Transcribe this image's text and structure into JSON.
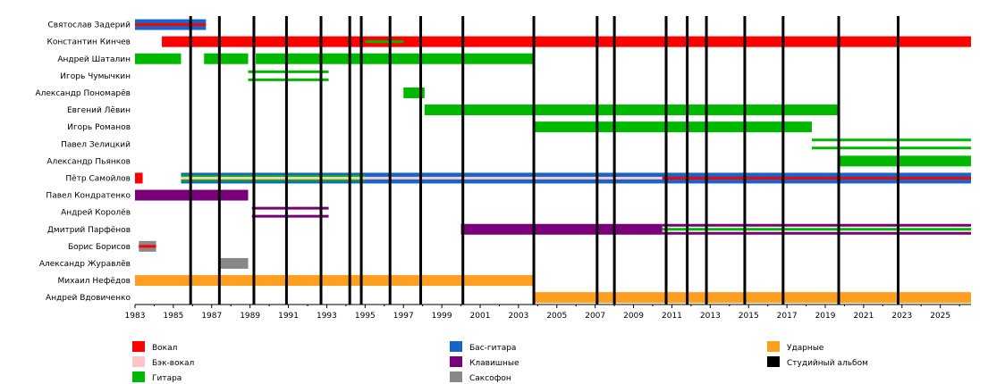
{
  "chart_data": {
    "type": "timeline",
    "title": "",
    "x_range": [
      1983,
      2026.6
    ],
    "x_ticks": [
      1983,
      1985,
      1987,
      1989,
      1991,
      1993,
      1995,
      1997,
      1999,
      2001,
      2003,
      2005,
      2007,
      2009,
      2011,
      2013,
      2015,
      2017,
      2019,
      2021,
      2023,
      2025
    ],
    "grid": false,
    "colors": {
      "vocals": "#ff0000",
      "backing_vocals": "#ffc4c4",
      "guitar": "#00b800",
      "bass": "#1566c8",
      "keyboards": "#790079",
      "saxophone": "#888888",
      "drums": "#ff9f20",
      "album": "#000000"
    },
    "roles": [
      {
        "key": "vocals",
        "label": "Вокал"
      },
      {
        "key": "backing_vocals",
        "label": "Бэк-вокал"
      },
      {
        "key": "guitar",
        "label": "Гитара"
      },
      {
        "key": "bass",
        "label": "Бас-гитара"
      },
      {
        "key": "keyboards",
        "label": "Клавишные"
      },
      {
        "key": "saxophone",
        "label": "Саксофон"
      },
      {
        "key": "drums",
        "label": "Ударные"
      },
      {
        "key": "album",
        "label": "Студийный альбом"
      }
    ],
    "albums": [
      1985.9,
      1987.4,
      1989.2,
      1990.9,
      1992.7,
      1994.2,
      1994.8,
      1996.3,
      1997.9,
      2000.1,
      2003.8,
      2007.1,
      2008.0,
      2010.7,
      2011.8,
      2012.8,
      2014.8,
      2016.8,
      2019.7,
      2022.8
    ],
    "members": [
      {
        "name": "Святослав Задерий",
        "bars": [
          {
            "start": 1983.0,
            "end": 1986.7,
            "role": "bass"
          },
          {
            "start": 1983.0,
            "end": 1986.7,
            "role": "vocals",
            "style": "thin"
          }
        ]
      },
      {
        "name": "Константин Кинчев",
        "bars": [
          {
            "start": 1984.4,
            "end": 2026.6,
            "role": "vocals"
          },
          {
            "start": 1995.0,
            "end": 1997.0,
            "role": "guitar",
            "style": "thin"
          }
        ]
      },
      {
        "name": "Андрей Шаталин",
        "bars": [
          {
            "start": 1983.0,
            "end": 1985.4,
            "role": "guitar"
          },
          {
            "start": 1986.6,
            "end": 1988.9,
            "role": "guitar"
          },
          {
            "start": 1989.3,
            "end": 2003.8,
            "role": "guitar"
          }
        ]
      },
      {
        "name": "Игорь Чумычкин",
        "bars": [
          {
            "start": 1988.9,
            "end": 1993.1,
            "role": "guitar",
            "style": "split"
          }
        ]
      },
      {
        "name": "Александр Пономарёв",
        "bars": [
          {
            "start": 1997.0,
            "end": 1998.1,
            "role": "guitar"
          }
        ]
      },
      {
        "name": "Евгений Лёвин",
        "bars": [
          {
            "start": 1998.1,
            "end": 2019.7,
            "role": "guitar"
          }
        ]
      },
      {
        "name": "Игорь Романов",
        "bars": [
          {
            "start": 2003.8,
            "end": 2018.3,
            "role": "guitar"
          }
        ]
      },
      {
        "name": "Павел Зелицкий",
        "bars": [
          {
            "start": 2018.3,
            "end": 2026.6,
            "role": "guitar",
            "style": "split"
          }
        ]
      },
      {
        "name": "Александр Пьянков",
        "bars": [
          {
            "start": 2019.7,
            "end": 2026.6,
            "role": "guitar"
          }
        ]
      },
      {
        "name": "Пётр Самойлов",
        "bars": [
          {
            "start": 1983.0,
            "end": 1983.4,
            "role": "vocals"
          },
          {
            "start": 1985.4,
            "end": 2026.6,
            "role": "bass"
          },
          {
            "start": 1985.4,
            "end": 1995.0,
            "role": "guitar",
            "style": "mid-green"
          },
          {
            "start": 1985.4,
            "end": 2010.5,
            "role": "backing_vocals",
            "style": "thin"
          },
          {
            "start": 2010.5,
            "end": 2026.6,
            "role": "vocals",
            "style": "thin"
          }
        ]
      },
      {
        "name": "Павел Кондратенко",
        "bars": [
          {
            "start": 1983.0,
            "end": 1988.9,
            "role": "keyboards"
          }
        ]
      },
      {
        "name": "Андрей Королёв",
        "bars": [
          {
            "start": 1989.1,
            "end": 1993.1,
            "role": "keyboards",
            "style": "split"
          }
        ]
      },
      {
        "name": "Дмитрий Парфёнов",
        "bars": [
          {
            "start": 2000.0,
            "end": 2010.5,
            "role": "keyboards"
          },
          {
            "start": 2010.5,
            "end": 2026.6,
            "role": "keyboards",
            "style": "with-green"
          }
        ]
      },
      {
        "name": "Борис Борисов",
        "bars": [
          {
            "start": 1983.2,
            "end": 1984.1,
            "role": "saxophone"
          },
          {
            "start": 1983.2,
            "end": 1984.1,
            "role": "vocals",
            "style": "thin"
          }
        ]
      },
      {
        "name": "Александр Журавлёв",
        "bars": [
          {
            "start": 1987.4,
            "end": 1988.9,
            "role": "saxophone"
          }
        ]
      },
      {
        "name": "Михаил Нефёдов",
        "bars": [
          {
            "start": 1983.0,
            "end": 2003.8,
            "role": "drums"
          }
        ]
      },
      {
        "name": "Андрей Вдовиченко",
        "bars": [
          {
            "start": 2003.8,
            "end": 2026.6,
            "role": "drums"
          }
        ]
      }
    ]
  }
}
